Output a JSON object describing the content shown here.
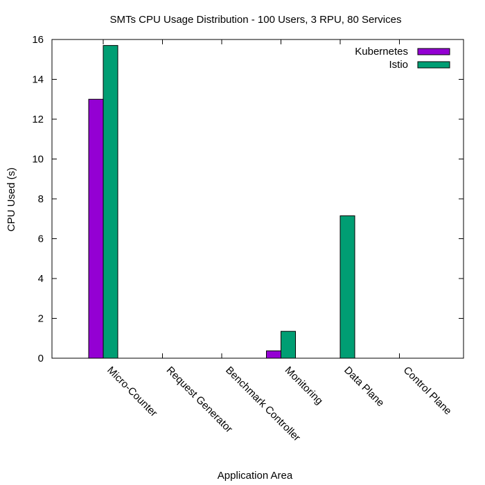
{
  "chart_data": {
    "type": "bar",
    "title": "SMTs CPU Usage Distribution - 100 Users, 3 RPU, 80 Services",
    "xlabel": "Application Area",
    "ylabel": "CPU Used (s)",
    "ylim": [
      0,
      16
    ],
    "yticks": [
      0,
      2,
      4,
      6,
      8,
      10,
      12,
      14,
      16
    ],
    "categories": [
      "Micro-Counter",
      "Request Generator",
      "Benchmark Controller",
      "Monitoring",
      "Data Plane",
      "Control Plane"
    ],
    "series": [
      {
        "name": "Kubernetes",
        "color": "#9400d3",
        "values": [
          13.0,
          0,
          0,
          0.37,
          0,
          0
        ]
      },
      {
        "name": "Istio",
        "color": "#009e73",
        "values": [
          15.7,
          0,
          0,
          1.35,
          7.15,
          0
        ]
      }
    ],
    "legend_position": "top-right",
    "grid": false
  }
}
